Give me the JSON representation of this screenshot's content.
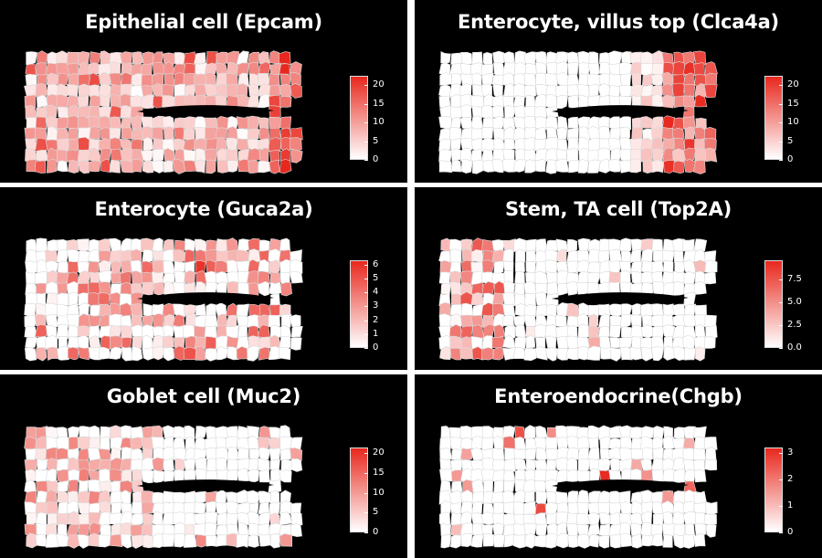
{
  "panels": [
    {
      "id": "epcam",
      "title": "Epithelial cell (Epcam)",
      "legend_ticks": [
        "20",
        "15",
        "10",
        "5",
        "0"
      ],
      "legend_tick_values": [
        20,
        15,
        10,
        5,
        0
      ],
      "legend_max": 22.5,
      "pattern": "broad",
      "colors": {
        "high": "#e8281e",
        "low": "#ffffff"
      }
    },
    {
      "id": "clca4a",
      "title": "Enterocyte, villus top (Clca4a)",
      "legend_ticks": [
        "20",
        "15",
        "10",
        "5",
        "0"
      ],
      "legend_tick_values": [
        20,
        15,
        10,
        5,
        0
      ],
      "legend_max": 22.5,
      "pattern": "tip",
      "colors": {
        "high": "#e8281e",
        "low": "#ffffff"
      }
    },
    {
      "id": "guca2a",
      "title": "Enterocyte (Guca2a)",
      "legend_ticks": [
        "6",
        "5",
        "4",
        "3",
        "2",
        "1",
        "0"
      ],
      "legend_tick_values": [
        6,
        5,
        4,
        3,
        2,
        1,
        0
      ],
      "legend_max": 6.3,
      "pattern": "mid",
      "colors": {
        "high": "#e8281e",
        "low": "#ffffff"
      }
    },
    {
      "id": "top2a",
      "title": "Stem, TA cell (Top2A)",
      "legend_ticks": [
        "7.5",
        "5.0",
        "2.5",
        "0.0"
      ],
      "legend_tick_values": [
        7.5,
        5.0,
        2.5,
        0.0
      ],
      "legend_max": 9.6,
      "pattern": "base",
      "colors": {
        "high": "#e8281e",
        "low": "#ffffff"
      }
    },
    {
      "id": "muc2",
      "title": "Goblet cell (Muc2)",
      "legend_ticks": [
        "20",
        "15",
        "10",
        "5",
        "0"
      ],
      "legend_tick_values": [
        20,
        15,
        10,
        5,
        0
      ],
      "legend_max": 21.5,
      "pattern": "left",
      "colors": {
        "high": "#e8281e",
        "low": "#ffffff"
      }
    },
    {
      "id": "chgb",
      "title": "Enteroendocrine(Chgb)",
      "legend_ticks": [
        "3",
        "2",
        "1",
        "0"
      ],
      "legend_tick_values": [
        3,
        2,
        1,
        0
      ],
      "legend_max": 3.2,
      "pattern": "sparse",
      "colors": {
        "high": "#e8281e",
        "low": "#ffffff"
      }
    }
  ]
}
